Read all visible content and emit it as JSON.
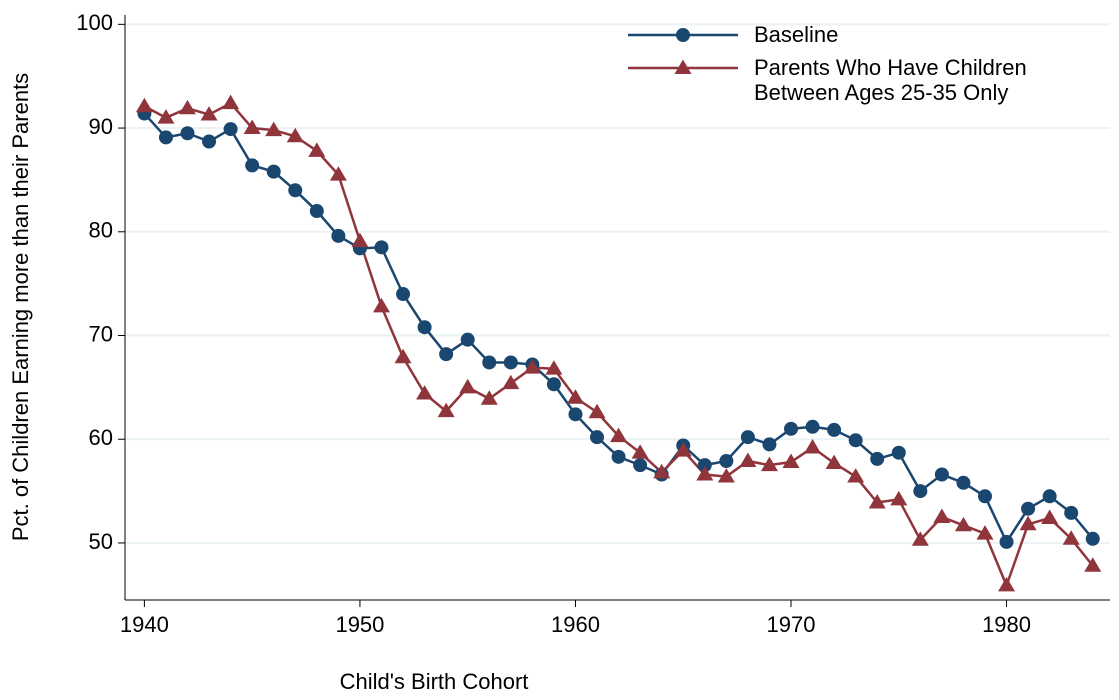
{
  "chart_data": {
    "type": "line",
    "x_label": "Child's Birth Cohort",
    "y_label": "Pct. of Children Earning more than their Parents",
    "x": [
      1940,
      1941,
      1942,
      1943,
      1944,
      1945,
      1946,
      1947,
      1948,
      1949,
      1950,
      1951,
      1952,
      1953,
      1954,
      1955,
      1956,
      1957,
      1958,
      1959,
      1960,
      1961,
      1962,
      1963,
      1964,
      1965,
      1966,
      1967,
      1968,
      1969,
      1970,
      1971,
      1972,
      1973,
      1974,
      1975,
      1976,
      1977,
      1978,
      1979,
      1980,
      1981,
      1982,
      1983,
      1984
    ],
    "series": [
      {
        "name": "Baseline",
        "color": "#1a476f",
        "marker": "circle",
        "values": [
          91.4,
          89.1,
          89.5,
          88.7,
          89.9,
          86.4,
          85.8,
          84.0,
          82.0,
          79.6,
          78.4,
          78.5,
          74.0,
          70.8,
          68.2,
          69.6,
          67.4,
          67.4,
          67.2,
          65.3,
          62.4,
          60.2,
          58.3,
          57.5,
          56.6,
          59.4,
          57.5,
          57.9,
          60.2,
          59.5,
          61.0,
          61.2,
          60.9,
          59.9,
          58.1,
          58.7,
          55.0,
          56.6,
          55.8,
          54.5,
          50.1,
          53.3,
          54.5,
          52.9,
          50.4
        ]
      },
      {
        "name": "Parents Who Have Children Between Ages 25-35 Only",
        "color": "#90353b",
        "marker": "triangle",
        "values": [
          92.1,
          91.0,
          91.9,
          91.3,
          92.4,
          90.0,
          89.8,
          89.2,
          87.8,
          85.5,
          79.1,
          72.8,
          67.9,
          64.4,
          62.7,
          65.0,
          63.9,
          65.4,
          66.9,
          66.8,
          64.0,
          62.6,
          60.3,
          58.7,
          56.8,
          58.9,
          56.6,
          56.4,
          57.9,
          57.5,
          57.8,
          59.2,
          57.7,
          56.4,
          53.9,
          54.2,
          50.3,
          52.5,
          51.7,
          50.9,
          45.9,
          51.8,
          52.4,
          50.4,
          47.8
        ]
      }
    ],
    "xlim": [
      1939.1,
      1984.8
    ],
    "xticks": [
      1940,
      1950,
      1960,
      1970,
      1980
    ],
    "ylim": [
      44.5,
      100.9
    ],
    "yticks": [
      50,
      60,
      70,
      80,
      90,
      100
    ],
    "grid": true,
    "legend": "upper right"
  }
}
